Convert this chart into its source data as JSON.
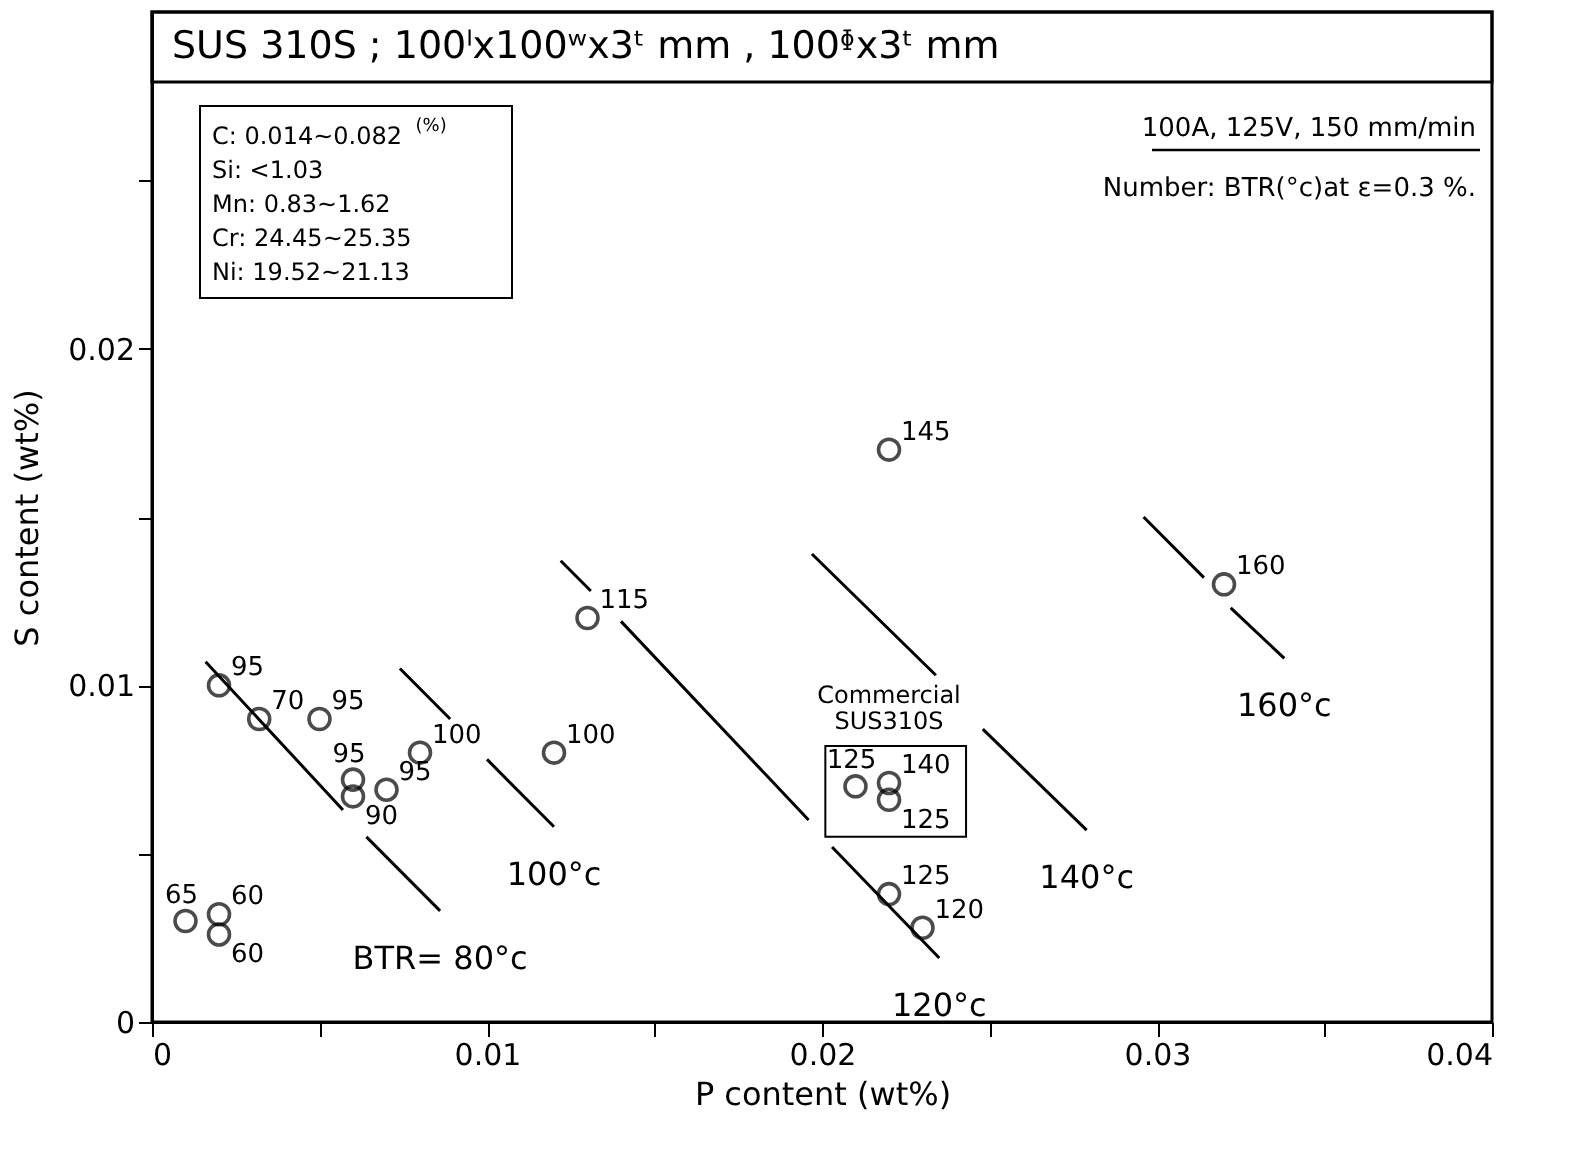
{
  "chart_data": {
    "type": "scatter",
    "title": "SUS 310S ; 100ˡx100ʷx3ᵗ mm , 100ᶲx3ᵗ mm",
    "xlabel": "P content (wt%)",
    "ylabel": "S content (wt%)",
    "xlim": [
      0,
      0.04
    ],
    "ylim": [
      0,
      0.03
    ],
    "xticks": [
      0,
      {
        "value": 0.005,
        "label": null
      },
      0.01,
      {
        "value": 0.015,
        "label": null
      },
      0.02,
      {
        "value": 0.025,
        "label": null
      },
      0.03,
      {
        "value": 0.035,
        "label": null
      },
      0.04
    ],
    "yticks": [
      0,
      {
        "value": 0.005,
        "label": null
      },
      0.01,
      {
        "value": 0.015,
        "label": null
      },
      0.02,
      {
        "value": 0.025,
        "label": null
      }
    ],
    "grid": false,
    "marker": "circle",
    "series": [
      {
        "color": "#000000",
        "x": [
          0.002,
          0.0032,
          0.005,
          0.006,
          0.006,
          0.007,
          0.008,
          0.012,
          0.013,
          0.001,
          0.002,
          0.002,
          0.022,
          0.032,
          0.021,
          0.022,
          0.022,
          0.022,
          0.023
        ],
        "values": [
          0.01,
          0.009,
          0.009,
          0.0072,
          0.0067,
          0.0069,
          0.008,
          0.008,
          0.012,
          0.003,
          0.0032,
          0.0026,
          0.017,
          0.013,
          0.007,
          0.0071,
          0.0066,
          0.0038,
          0.0028
        ]
      },
      {
        "type": "line",
        "marker": "none",
        "color": "#000000",
        "line_style": "solid",
        "x": [
          0.0016,
          0.0057,
          0.006,
          0.0064,
          0.0086
        ],
        "values": [
          0.0107,
          0.0063,
          null,
          0.0055,
          0.0033
        ]
      },
      {
        "type": "line",
        "marker": "none",
        "color": "#000000",
        "line_style": "solid",
        "x": [
          0.0074,
          0.0089,
          0.0095,
          0.01,
          0.012
        ],
        "values": [
          0.0105,
          0.009,
          null,
          0.0078,
          0.0058
        ]
      },
      {
        "type": "line",
        "marker": "none",
        "color": "#000000",
        "line_style": "solid",
        "x": [
          0.0122,
          0.0131,
          0.0135,
          0.014,
          0.0196,
          0.02,
          0.0203,
          0.0235
        ],
        "values": [
          0.0137,
          0.0128,
          null,
          0.0119,
          0.006,
          null,
          0.0052,
          0.0019
        ]
      },
      {
        "type": "line",
        "marker": "none",
        "color": "#000000",
        "line_style": "solid",
        "x": [
          0.0197,
          0.0234,
          0.024,
          0.0248,
          0.0279
        ],
        "values": [
          0.0139,
          0.0103,
          null,
          0.0087,
          0.0057
        ]
      },
      {
        "type": "line",
        "marker": "none",
        "color": "#000000",
        "line_style": "solid",
        "x": [
          0.0296,
          0.0314,
          0.0318,
          0.0322,
          0.0338
        ],
        "values": [
          0.015,
          0.0132,
          null,
          0.0123,
          0.0108
        ]
      }
    ],
    "annotations": [
      "C: 0.014~0.082$^{(%)}$\nSi: <1.03\nMn: 0.83~1.62\nCr: 24.45~25.35\nNi: 19.52~21.13",
      "100A, 125V, 150 mm/min",
      "Number: BTR(°c)at ε=0.3 %.",
      "BTR=  80°c",
      "100°c",
      "120°c",
      "140°c",
      "160°c",
      {
        "text": "Commercial\nSUS310S",
        "x": 0.022,
        "y": 0.0071
      },
      {
        "text": "95",
        "x": 0.002,
        "y": 0.01
      },
      {
        "text": "70",
        "x": 0.0032,
        "y": 0.009
      },
      {
        "text": "95",
        "x": 0.005,
        "y": 0.009
      },
      {
        "text": "95",
        "x": 0.006,
        "y": 0.0072
      },
      {
        "text": "90",
        "x": 0.006,
        "y": 0.0067
      },
      {
        "text": "95",
        "x": 0.007,
        "y": 0.0069
      },
      {
        "text": "100",
        "x": 0.008,
        "y": 0.008
      },
      {
        "text": "100",
        "x": 0.012,
        "y": 0.008
      },
      {
        "text": "115",
        "x": 0.013,
        "y": 0.012
      },
      {
        "text": "65",
        "x": 0.001,
        "y": 0.003
      },
      {
        "text": "60",
        "x": 0.002,
        "y": 0.0032
      },
      {
        "text": "60",
        "x": 0.002,
        "y": 0.0026
      },
      {
        "text": "145",
        "x": 0.022,
        "y": 0.017
      },
      {
        "text": "160",
        "x": 0.032,
        "y": 0.013
      },
      {
        "text": "125",
        "x": 0.021,
        "y": 0.007
      },
      {
        "text": "140",
        "x": 0.022,
        "y": 0.0071
      },
      {
        "text": "125",
        "x": 0.022,
        "y": 0.0066
      },
      {
        "text": "125",
        "x": 0.022,
        "y": 0.0038
      },
      {
        "text": "120",
        "x": 0.023,
        "y": 0.0028
      }
    ]
  }
}
